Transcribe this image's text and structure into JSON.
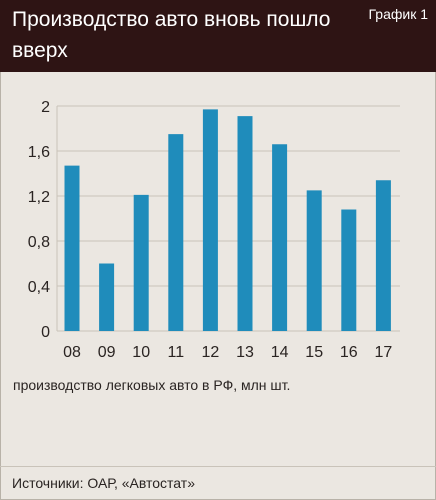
{
  "header": {
    "title": "Производство авто вновь пошло вверх",
    "badge": "График 1"
  },
  "caption": "производство легковых авто в РФ, млн шт.",
  "source": "Источники: ОАР, «Автостат»",
  "colors": {
    "header_bg": "#2e1414",
    "page_bg": "#ebe7e1",
    "bar": "#1f8cbb",
    "grid": "#c9c3b9"
  },
  "chart_data": {
    "type": "bar",
    "categories": [
      "08",
      "09",
      "10",
      "11",
      "12",
      "13",
      "14",
      "15",
      "16",
      "17"
    ],
    "values": [
      1.47,
      0.6,
      1.21,
      1.75,
      1.97,
      1.91,
      1.66,
      1.25,
      1.08,
      1.34
    ],
    "ylim": [
      0,
      2
    ],
    "yticks": [
      "0",
      "0,4",
      "0,8",
      "1,2",
      "1,6",
      "2"
    ],
    "grid": true,
    "xlabel": "",
    "ylabel": ""
  }
}
